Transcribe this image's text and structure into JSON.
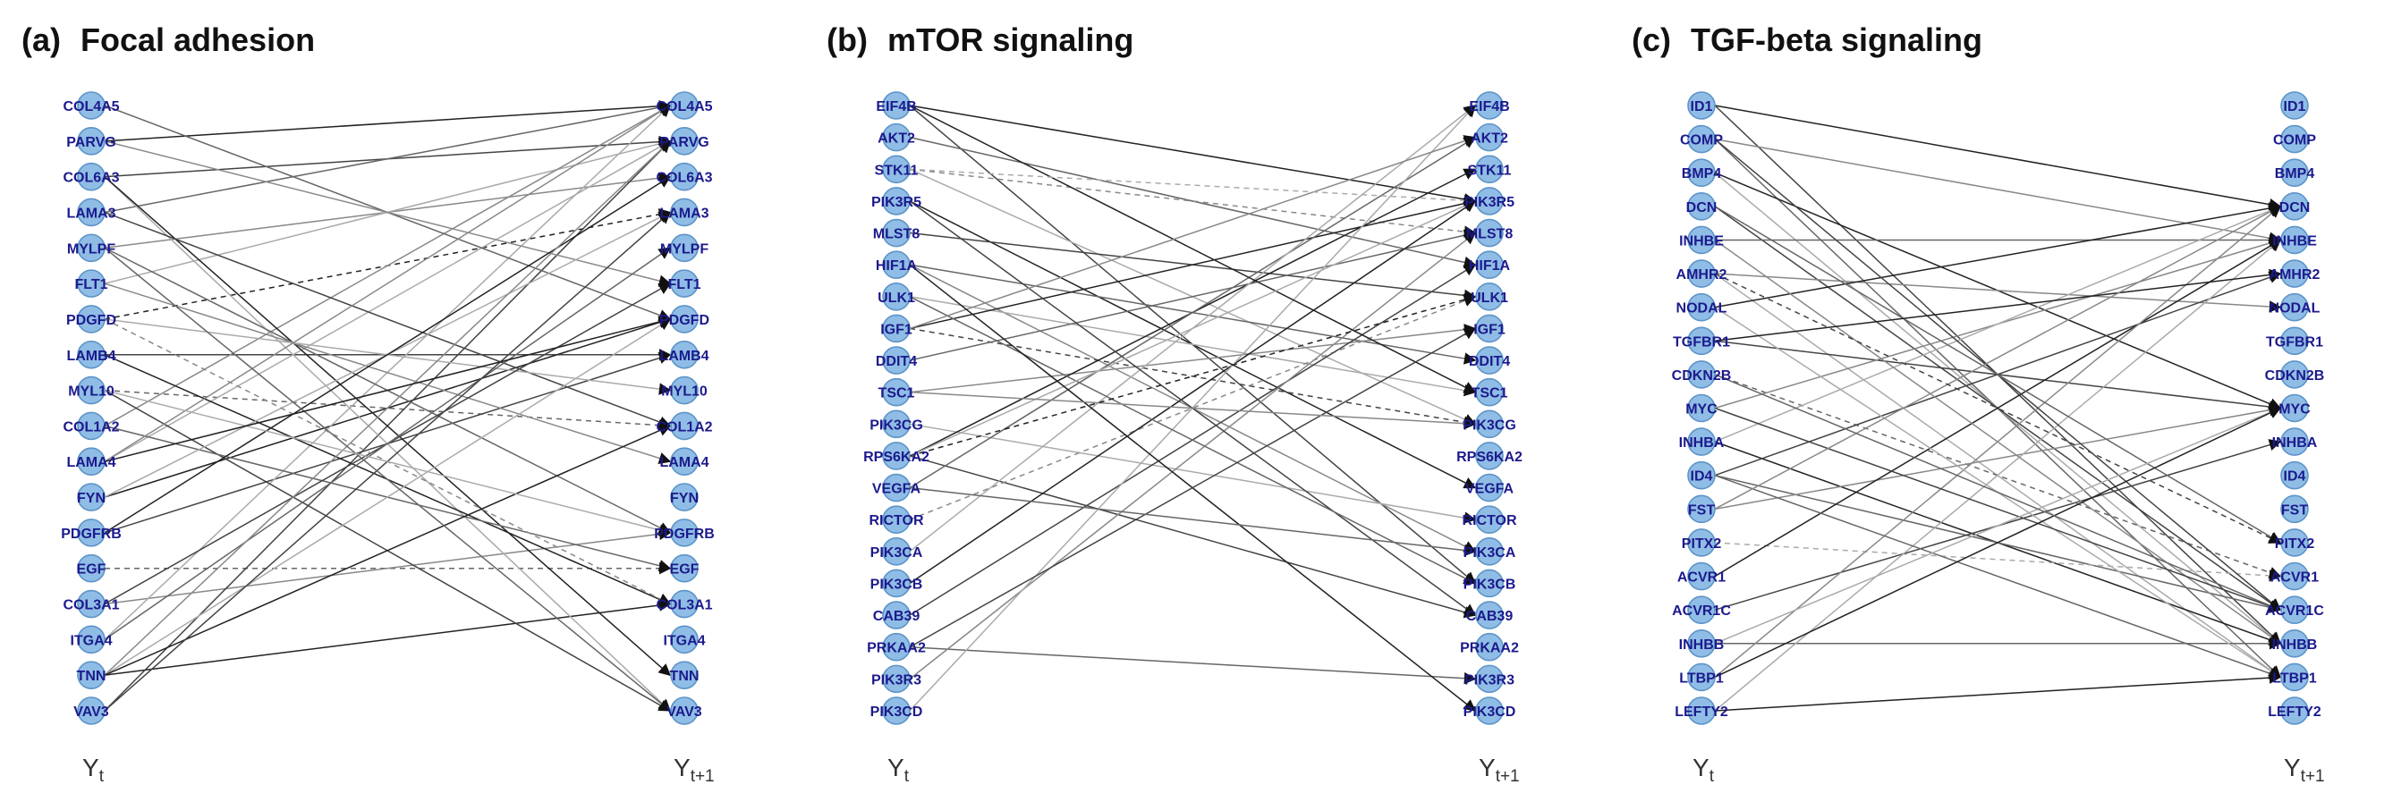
{
  "panels": [
    {
      "id": "a",
      "label": "(a)",
      "title": "Focal adhesion",
      "time_left": "Y",
      "time_left_sub": "t",
      "time_right": "Y",
      "time_right_sub": "t+1",
      "nodes": [
        "COL4A5",
        "PARVG",
        "COL6A3",
        "LAMA3",
        "MYLPF",
        "FLT1",
        "PDGFD",
        "LAMB4",
        "MYL10",
        "COL1A2",
        "LAMA4",
        "FYN",
        "PDGFRB",
        "EGF",
        "COL3A1",
        "ITGA4",
        "TNN",
        "VAV3"
      ],
      "edges": [
        [
          1,
          0,
          "solid"
        ],
        [
          2,
          1,
          "solid"
        ],
        [
          3,
          0,
          "solid"
        ],
        [
          4,
          2,
          "solid"
        ],
        [
          5,
          1,
          "solid"
        ],
        [
          6,
          3,
          "dashed"
        ],
        [
          7,
          7,
          "solid"
        ],
        [
          8,
          9,
          "dashed"
        ],
        [
          9,
          0,
          "solid"
        ],
        [
          10,
          1,
          "solid"
        ],
        [
          11,
          6,
          "solid"
        ],
        [
          12,
          7,
          "solid"
        ],
        [
          13,
          13,
          "dashed"
        ],
        [
          14,
          12,
          "solid"
        ],
        [
          15,
          0,
          "solid"
        ],
        [
          16,
          14,
          "solid"
        ],
        [
          17,
          1,
          "solid"
        ],
        [
          0,
          6,
          "solid"
        ],
        [
          1,
          5,
          "solid"
        ],
        [
          2,
          17,
          "solid"
        ],
        [
          2,
          16,
          "solid"
        ],
        [
          3,
          9,
          "solid"
        ],
        [
          4,
          12,
          "solid"
        ],
        [
          5,
          10,
          "solid"
        ],
        [
          6,
          8,
          "solid"
        ],
        [
          7,
          14,
          "solid"
        ],
        [
          8,
          17,
          "solid"
        ],
        [
          9,
          13,
          "solid"
        ],
        [
          10,
          0,
          "solid"
        ],
        [
          11,
          3,
          "solid"
        ],
        [
          12,
          2,
          "solid"
        ],
        [
          14,
          5,
          "solid"
        ],
        [
          15,
          4,
          "solid"
        ],
        [
          16,
          1,
          "solid"
        ],
        [
          16,
          6,
          "solid"
        ],
        [
          16,
          9,
          "solid"
        ],
        [
          17,
          3,
          "solid"
        ],
        [
          4,
          17,
          "solid"
        ],
        [
          6,
          14,
          "dashed"
        ],
        [
          8,
          12,
          "solid"
        ],
        [
          10,
          6,
          "solid"
        ]
      ]
    },
    {
      "id": "b",
      "label": "(b)",
      "title": "mTOR signaling",
      "time_left": "Y",
      "time_left_sub": "t",
      "time_right": "Y",
      "time_right_sub": "t+1",
      "nodes": [
        "EIF4B",
        "AKT2",
        "STK11",
        "PIK3R5",
        "MLST8",
        "HIF1A",
        "ULK1",
        "IGF1",
        "DDIT4",
        "TSC1",
        "PIK3CG",
        "RPS6KA2",
        "VEGFA",
        "RICTOR",
        "PIK3CA",
        "PIK3CB",
        "CAB39",
        "PRKAA2",
        "PIK3R3",
        "PIK3CD"
      ],
      "edges": [
        [
          0,
          3,
          "solid"
        ],
        [
          0,
          15,
          "solid"
        ],
        [
          1,
          5,
          "solid"
        ],
        [
          2,
          4,
          "dashed"
        ],
        [
          2,
          10,
          "solid"
        ],
        [
          3,
          12,
          "solid"
        ],
        [
          4,
          6,
          "solid"
        ],
        [
          5,
          8,
          "solid"
        ],
        [
          5,
          14,
          "solid"
        ],
        [
          6,
          9,
          "solid"
        ],
        [
          7,
          3,
          "solid"
        ],
        [
          7,
          10,
          "dashed"
        ],
        [
          8,
          4,
          "solid"
        ],
        [
          9,
          7,
          "solid"
        ],
        [
          10,
          13,
          "solid"
        ],
        [
          11,
          2,
          "solid"
        ],
        [
          11,
          16,
          "solid"
        ],
        [
          12,
          1,
          "solid"
        ],
        [
          13,
          6,
          "dashed"
        ],
        [
          14,
          0,
          "solid"
        ],
        [
          15,
          3,
          "solid"
        ],
        [
          16,
          5,
          "solid"
        ],
        [
          17,
          18,
          "solid"
        ],
        [
          18,
          4,
          "solid"
        ],
        [
          19,
          0,
          "solid"
        ],
        [
          0,
          9,
          "solid"
        ],
        [
          3,
          16,
          "solid"
        ],
        [
          6,
          15,
          "solid"
        ],
        [
          7,
          1,
          "solid"
        ],
        [
          11,
          3,
          "solid"
        ],
        [
          5,
          19,
          "solid"
        ],
        [
          17,
          7,
          "solid"
        ],
        [
          12,
          14,
          "solid"
        ],
        [
          9,
          10,
          "solid"
        ],
        [
          2,
          3,
          "dashed"
        ],
        [
          11,
          6,
          "dashed"
        ]
      ]
    },
    {
      "id": "c",
      "label": "(c)",
      "title": "TGF-beta signaling",
      "time_left": "Y",
      "time_left_sub": "t",
      "time_right": "Y",
      "time_right_sub": "t+1",
      "nodes": [
        "ID1",
        "COMP",
        "BMP4",
        "DCN",
        "INHBE",
        "AMHR2",
        "NODAL",
        "TGFBR1",
        "CDKN2B",
        "MYC",
        "INHBA",
        "ID4",
        "FST",
        "PITX2",
        "ACVR1",
        "ACVR1C",
        "INHBB",
        "LTBP1",
        "LEFTY2"
      ],
      "edges": [
        [
          0,
          3,
          "solid"
        ],
        [
          0,
          16,
          "solid"
        ],
        [
          1,
          17,
          "solid"
        ],
        [
          1,
          4,
          "solid"
        ],
        [
          2,
          16,
          "solid"
        ],
        [
          2,
          9,
          "solid"
        ],
        [
          3,
          15,
          "solid"
        ],
        [
          4,
          4,
          "solid"
        ],
        [
          5,
          6,
          "solid"
        ],
        [
          5,
          17,
          "solid"
        ],
        [
          6,
          3,
          "solid"
        ],
        [
          7,
          9,
          "solid"
        ],
        [
          8,
          14,
          "dashed"
        ],
        [
          9,
          4,
          "solid"
        ],
        [
          10,
          3,
          "solid"
        ],
        [
          10,
          16,
          "solid"
        ],
        [
          11,
          5,
          "solid"
        ],
        [
          11,
          15,
          "solid"
        ],
        [
          12,
          9,
          "solid"
        ],
        [
          13,
          14,
          "dashed"
        ],
        [
          14,
          4,
          "solid"
        ],
        [
          15,
          10,
          "solid"
        ],
        [
          16,
          16,
          "solid"
        ],
        [
          17,
          3,
          "solid"
        ],
        [
          18,
          4,
          "solid"
        ],
        [
          18,
          17,
          "solid"
        ],
        [
          1,
          15,
          "solid"
        ],
        [
          3,
          13,
          "solid"
        ],
        [
          4,
          16,
          "solid"
        ],
        [
          6,
          17,
          "solid"
        ],
        [
          7,
          5,
          "solid"
        ],
        [
          9,
          15,
          "solid"
        ],
        [
          11,
          17,
          "solid"
        ],
        [
          12,
          3,
          "solid"
        ],
        [
          16,
          9,
          "solid"
        ],
        [
          17,
          9,
          "solid"
        ],
        [
          5,
          13,
          "dashed"
        ],
        [
          8,
          15,
          "solid"
        ]
      ]
    }
  ]
}
